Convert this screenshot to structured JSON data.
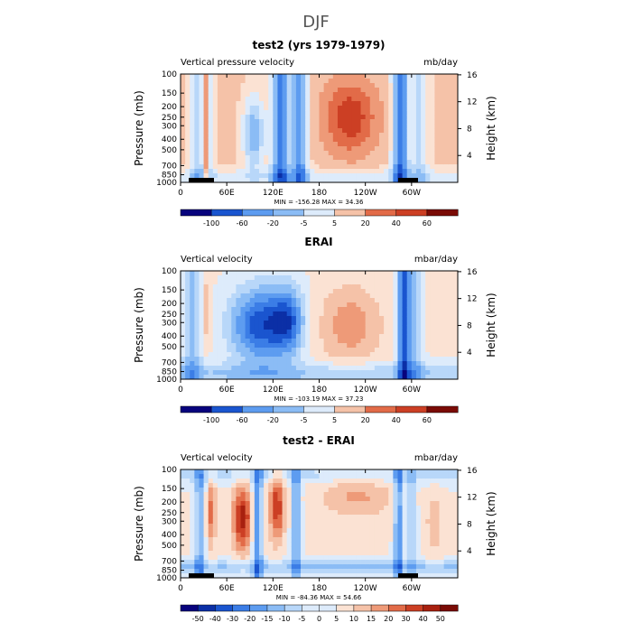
{
  "main_title": "DJF",
  "palette_diverging": [
    "#08037d",
    "#0b2fa6",
    "#1a55cf",
    "#3b7de6",
    "#5d9cf0",
    "#8bbcf5",
    "#b8d7f9",
    "#ddebfb",
    "#fbe2d3",
    "#f5c2a8",
    "#ee9a78",
    "#e26b48",
    "#cc3f24",
    "#a8200f",
    "#7a0b05"
  ],
  "chart_data": [
    {
      "type": "heatmap",
      "panel_title": "test2 (yrs 1979-1979)",
      "left_label": "Vertical pressure velocity",
      "units": "mb/day",
      "ylabel": "Pressure (mb)",
      "ylabel_right": "Height (km)",
      "pressure_ticks": [
        "100",
        "150",
        "200",
        "250",
        "300",
        "400",
        "500",
        "700",
        "850",
        "1000"
      ],
      "height_ticks": [
        "16",
        "12",
        "8",
        "4"
      ],
      "x_ticks": [
        "0",
        "60E",
        "120E",
        "180",
        "120W",
        "60W"
      ],
      "xlim": [
        0,
        360
      ],
      "ylim": [
        1000,
        100
      ],
      "stats": {
        "min_label": "MIN = -156.28",
        "max_label": "MAX = 34.36"
      },
      "levels": [
        "-100",
        "-60",
        "-20",
        "-5",
        "5",
        "20",
        "40",
        "60"
      ]
    },
    {
      "type": "heatmap",
      "panel_title": "ERAI",
      "left_label": "Vertical velocity",
      "units": "mbar/day",
      "ylabel": "Pressure (mb)",
      "ylabel_right": "Height (km)",
      "pressure_ticks": [
        "100",
        "150",
        "200",
        "250",
        "300",
        "400",
        "500",
        "700",
        "850",
        "1000"
      ],
      "height_ticks": [
        "16",
        "12",
        "8",
        "4"
      ],
      "x_ticks": [
        "0",
        "60E",
        "120E",
        "180",
        "120W",
        "60W"
      ],
      "xlim": [
        0,
        360
      ],
      "ylim": [
        1000,
        100
      ],
      "stats": {
        "min_label": "MIN = -103.19",
        "max_label": "MAX = 37.23"
      },
      "levels": [
        "-100",
        "-60",
        "-20",
        "-5",
        "5",
        "20",
        "40",
        "60"
      ]
    },
    {
      "type": "heatmap",
      "panel_title": "test2 - ERAI",
      "left_label": "Vertical velocity",
      "units": "mbar/day",
      "ylabel": "Pressure (mb)",
      "ylabel_right": "Height (km)",
      "pressure_ticks": [
        "100",
        "150",
        "200",
        "250",
        "300",
        "400",
        "500",
        "700",
        "850",
        "1000"
      ],
      "height_ticks": [
        "16",
        "12",
        "8",
        "4"
      ],
      "x_ticks": [
        "0",
        "60E",
        "120E",
        "180",
        "120W",
        "60W"
      ],
      "xlim": [
        0,
        360
      ],
      "ylim": [
        1000,
        100
      ],
      "stats": {
        "min_label": "MIN = -84.36",
        "max_label": "MAX = 54.66"
      },
      "levels": [
        "-50",
        "-40",
        "-30",
        "-20",
        "-15",
        "-10",
        "-5",
        "0",
        "5",
        "10",
        "15",
        "20",
        "30",
        "40",
        "50"
      ]
    }
  ]
}
